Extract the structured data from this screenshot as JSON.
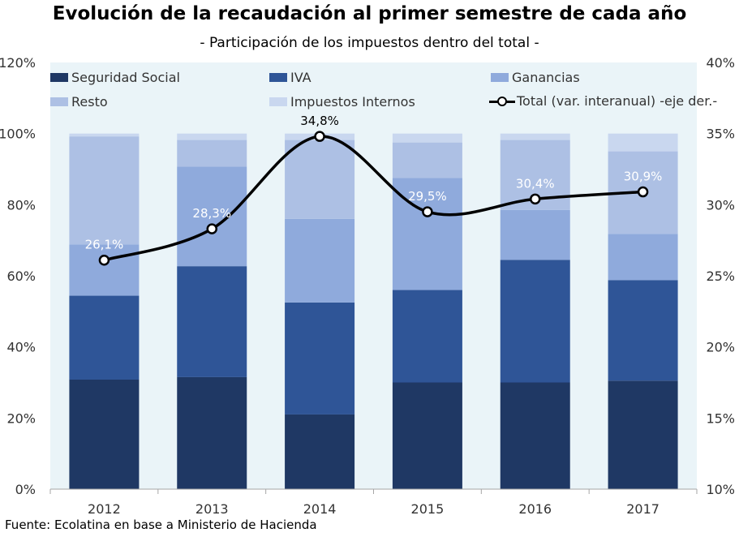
{
  "title": "Evolución de la recaudación al primer semestre de cada año",
  "subtitle": "- Participación de los impuestos dentro del total -",
  "source": "Fuente: Ecolatina en base a Ministerio de Hacienda",
  "chart_data": {
    "type": "bar",
    "stacked": true,
    "categories": [
      "2012",
      "2013",
      "2014",
      "2015",
      "2016",
      "2017"
    ],
    "series": [
      {
        "name": "Seguridad Social",
        "color": "#1f3864",
        "values": [
          30.8,
          31.5,
          21.0,
          30.0,
          30.0,
          30.5
        ]
      },
      {
        "name": "IVA",
        "color": "#2f5597",
        "values": [
          23.6,
          31.2,
          31.5,
          26.0,
          34.5,
          28.3
        ]
      },
      {
        "name": "Ganancias",
        "color": "#8faadc",
        "values": [
          14.4,
          28.0,
          23.5,
          31.5,
          14.0,
          13.0
        ]
      },
      {
        "name": "Resto",
        "color": "#adc0e4",
        "values": [
          30.4,
          7.5,
          22.2,
          10.0,
          19.7,
          23.2
        ]
      },
      {
        "name": "Impuestos Internos",
        "color": "#c9d7ef",
        "values": [
          0.8,
          1.8,
          1.8,
          2.5,
          1.8,
          5.0
        ]
      }
    ],
    "line": {
      "name": "Total (var. interanual) -eje der.-",
      "values": [
        26.1,
        28.3,
        34.8,
        29.5,
        30.4,
        30.9
      ],
      "labels": [
        "26,1%",
        "28,3%",
        "34,8%",
        "29,5%",
        "30,4%",
        "30,9%"
      ]
    },
    "y_left": {
      "min": 0,
      "max": 120,
      "ticks": [
        "0%",
        "20%",
        "40%",
        "60%",
        "80%",
        "100%",
        "120%"
      ]
    },
    "y_right": {
      "min": 10,
      "max": 40,
      "ticks": [
        "10%",
        "15%",
        "20%",
        "25%",
        "30%",
        "35%",
        "40%"
      ]
    },
    "grid": false,
    "legend_position": "top",
    "plot_background": "#eaf4f8"
  }
}
